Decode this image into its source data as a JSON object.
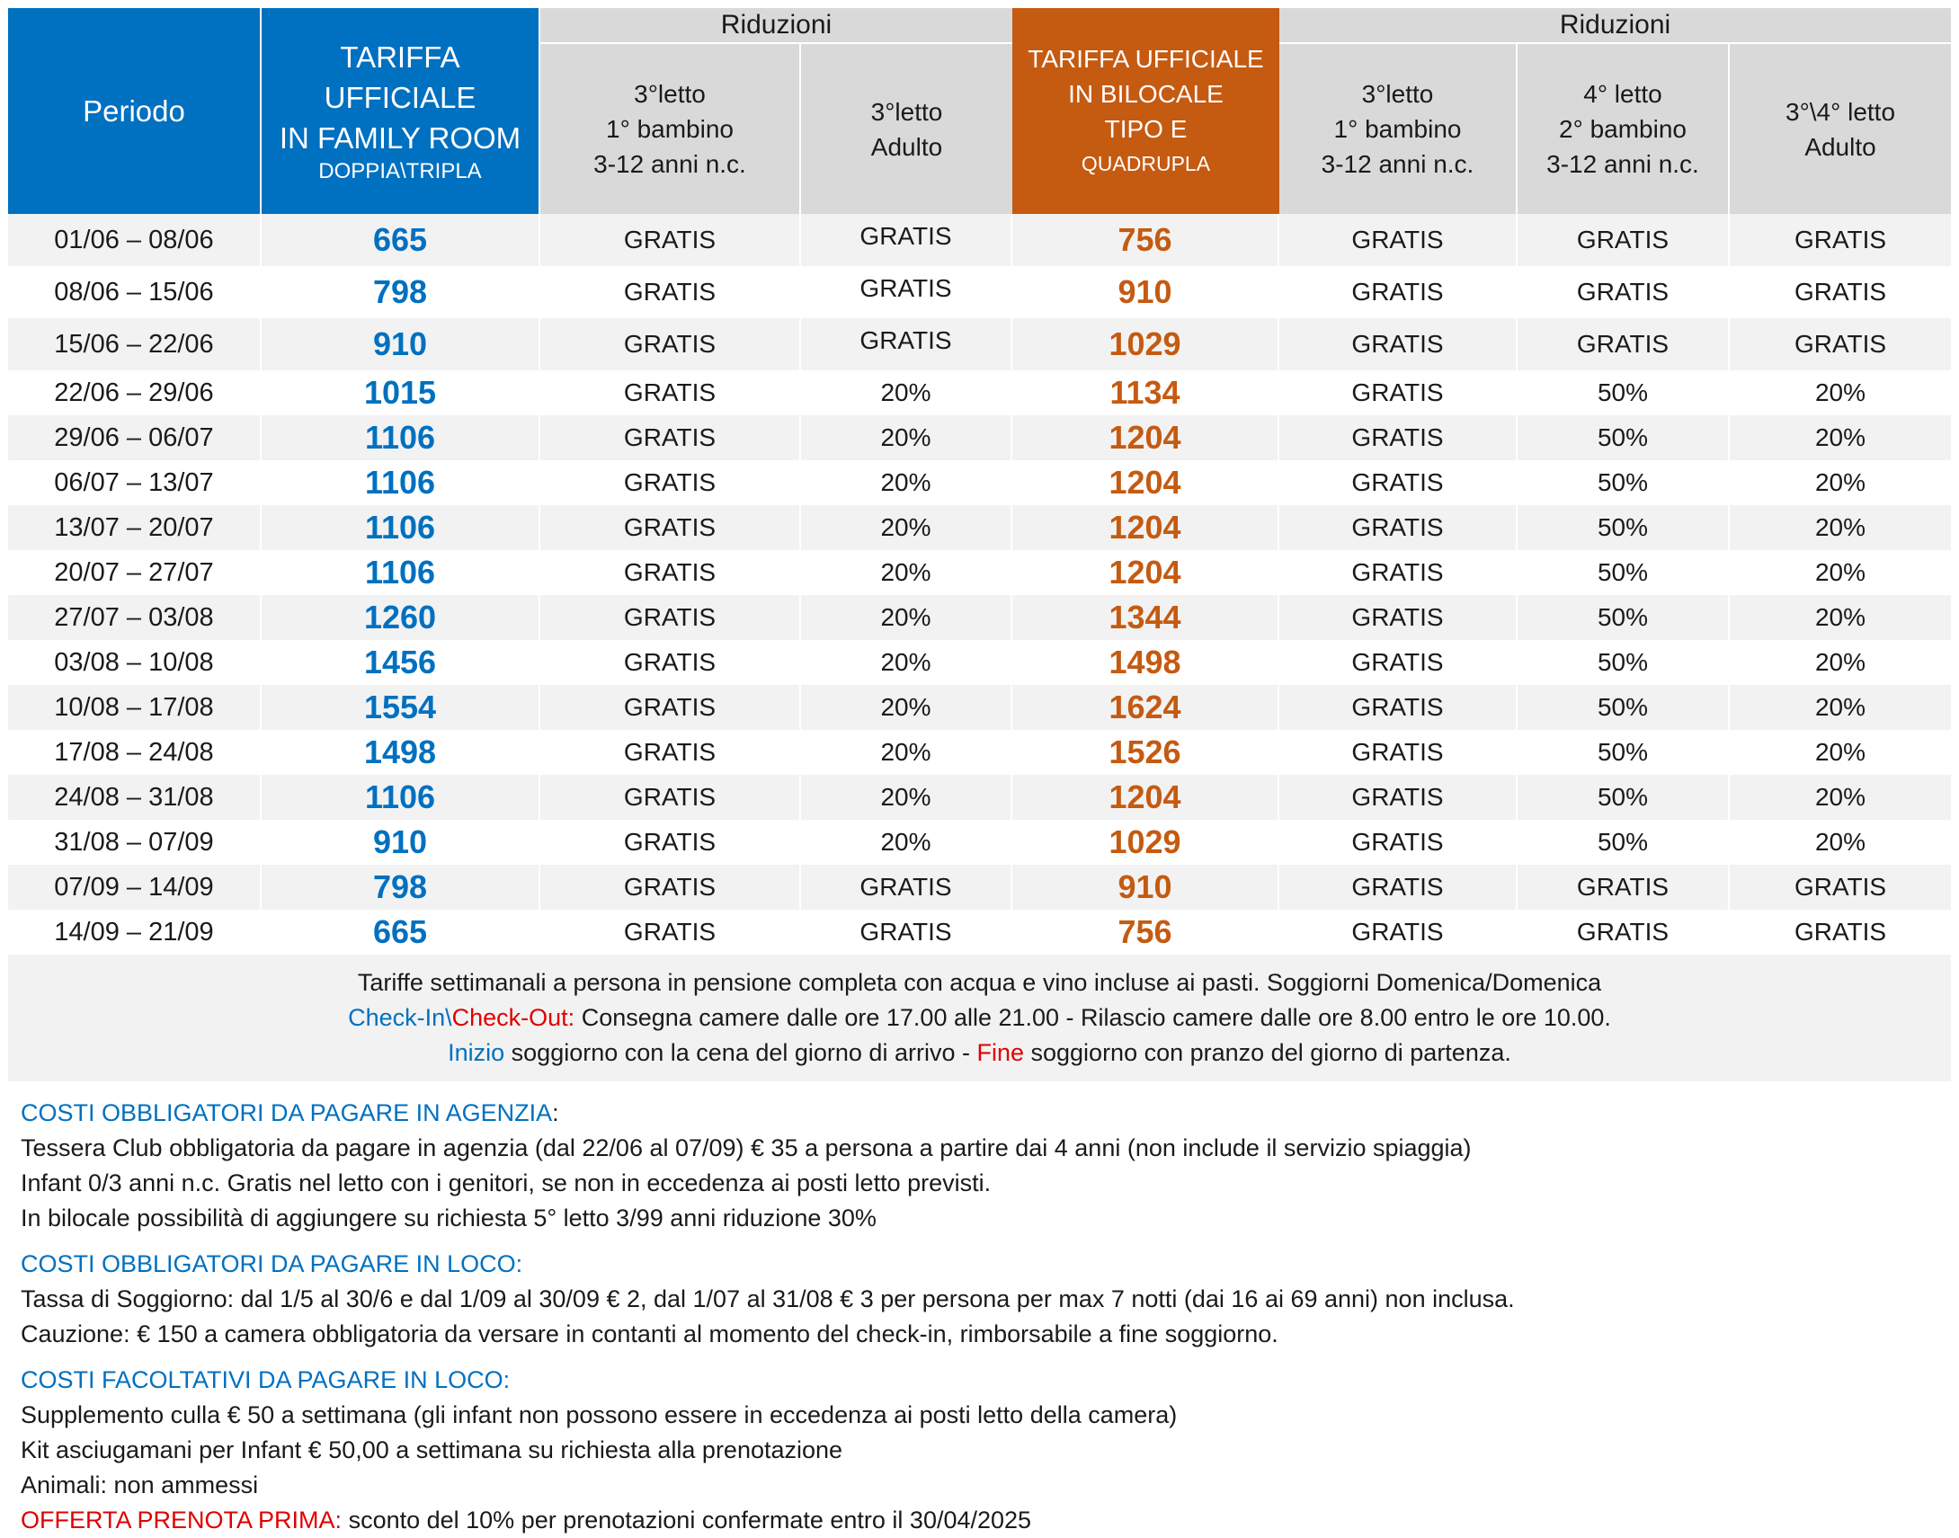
{
  "header": {
    "periodo": "Periodo",
    "family_line1": "TARIFFA UFFICIALE",
    "family_line2": "IN FAMILY ROOM",
    "family_sub": "DOPPIA\\TRIPLA",
    "riduzioni_1": "Riduzioni",
    "riduzioni_2": "Riduzioni",
    "f_col1": [
      "3°letto",
      "1° bambino",
      "3-12 anni n.c."
    ],
    "f_col2": [
      "3°letto",
      "Adulto"
    ],
    "bilo_line1": "TARIFFA UFFICIALE",
    "bilo_line2": "IN BILOCALE",
    "bilo_line3": "TIPO E",
    "bilo_sub": "QUADRUPLA",
    "b_col1": [
      "3°letto",
      "1° bambino",
      "3-12 anni n.c."
    ],
    "b_col2": [
      "4° letto",
      "2° bambino",
      "3-12 anni n.c."
    ],
    "b_col3": [
      "3°\\4° letto",
      "Adulto"
    ]
  },
  "rows": [
    [
      "01/06 – 08/06",
      "665",
      "GRATIS",
      "GRATIS",
      "756",
      "GRATIS",
      "GRATIS",
      "GRATIS"
    ],
    [
      "08/06 – 15/06",
      "798",
      "GRATIS",
      "GRATIS",
      "910",
      "GRATIS",
      "GRATIS",
      "GRATIS"
    ],
    [
      "15/06 – 22/06",
      "910",
      "GRATIS",
      "GRATIS",
      "1029",
      "GRATIS",
      "GRATIS",
      "GRATIS"
    ],
    [
      "22/06 – 29/06",
      "1015",
      "GRATIS",
      "20%",
      "1134",
      "GRATIS",
      "50%",
      "20%"
    ],
    [
      "29/06 – 06/07",
      "1106",
      "GRATIS",
      "20%",
      "1204",
      "GRATIS",
      "50%",
      "20%"
    ],
    [
      "06/07 – 13/07",
      "1106",
      "GRATIS",
      "20%",
      "1204",
      "GRATIS",
      "50%",
      "20%"
    ],
    [
      "13/07 – 20/07",
      "1106",
      "GRATIS",
      "20%",
      "1204",
      "GRATIS",
      "50%",
      "20%"
    ],
    [
      "20/07 – 27/07",
      "1106",
      "GRATIS",
      "20%",
      "1204",
      "GRATIS",
      "50%",
      "20%"
    ],
    [
      "27/07 – 03/08",
      "1260",
      "GRATIS",
      "20%",
      "1344",
      "GRATIS",
      "50%",
      "20%"
    ],
    [
      "03/08 – 10/08",
      "1456",
      "GRATIS",
      "20%",
      "1498",
      "GRATIS",
      "50%",
      "20%"
    ],
    [
      "10/08 – 17/08",
      "1554",
      "GRATIS",
      "20%",
      "1624",
      "GRATIS",
      "50%",
      "20%"
    ],
    [
      "17/08 – 24/08",
      "1498",
      "GRATIS",
      "20%",
      "1526",
      "GRATIS",
      "50%",
      "20%"
    ],
    [
      "24/08 – 31/08",
      "1106",
      "GRATIS",
      "20%",
      "1204",
      "GRATIS",
      "50%",
      "20%"
    ],
    [
      "31/08 – 07/09",
      "910",
      "GRATIS",
      "20%",
      "1029",
      "GRATIS",
      "50%",
      "20%"
    ],
    [
      "07/09 – 14/09",
      "798",
      "GRATIS",
      "GRATIS",
      "910",
      "GRATIS",
      "GRATIS",
      "GRATIS"
    ],
    [
      "14/09 – 21/09",
      "665",
      "GRATIS",
      "GRATIS",
      "756",
      "GRATIS",
      "GRATIS",
      "GRATIS"
    ]
  ],
  "notes": {
    "line1": "Tariffe settimanali a persona in pensione completa con acqua e vino incluse ai pasti. Soggiorni Domenica/Domenica",
    "checkin": "Check-In\\",
    "checkout": "Check-Out:",
    "line2_rest": " Consegna camere dalle ore 17.00 alle 21.00 - Rilascio camere dalle ore 8.00 entro le ore 10.00.",
    "inizio": "Inizio",
    "line3_mid": " soggiorno con la cena del giorno di arrivo - ",
    "fine": "Fine",
    "line3_end": " soggiorno con pranzo del giorno di partenza."
  },
  "costs": {
    "agenzia_title": "COSTI OBBLIGATORI DA PAGARE IN AGENZIA",
    "agenzia_colon": ":",
    "agenzia_lines": [
      "Tessera Club obbligatoria da pagare in agenzia (dal 22/06 al 07/09) € 35 a persona a partire dai 4 anni (non include il servizio spiaggia)",
      "Infant 0/3 anni n.c.  Gratis nel letto con i genitori, se non in eccedenza ai posti letto previsti.",
      "In bilocale possibilità di aggiungere su richiesta 5° letto 3/99 anni riduzione 30%"
    ],
    "loco_title": "COSTI OBBLIGATORI DA PAGARE IN LOCO:",
    "loco_lines": [
      "Tassa di Soggiorno: dal 1/5 al 30/6 e dal 1/09 al 30/09 € 2, dal 1/07 al 31/08 € 3 per persona per max 7 notti (dai 16 ai 69 anni) non inclusa.",
      "Cauzione: € 150 a camera obbligatoria da versare in contanti al momento del check-in, rimborsabile a fine soggiorno."
    ],
    "facoltativi_title": "COSTI FACOLTATIVI DA PAGARE IN LOCO:",
    "facoltativi_lines": [
      "Supplemento culla € 50 a settimana (gli infant non possono essere in eccedenza ai posti letto della camera)",
      "Kit asciugamani per Infant € 50,00 a settimana su richiesta alla prenotazione",
      "Animali: non ammessi"
    ],
    "offer_title": "OFFERTA PRENOTA PRIMA:",
    "offer_text": " sconto del 10% per prenotazioni confermate entro il 30/04/2025"
  },
  "colors": {
    "blue": "#0070c0",
    "orange": "#c55a11",
    "red": "#e00000",
    "header_grey": "#d9d9d9",
    "row_grey": "#f2f2f2"
  }
}
